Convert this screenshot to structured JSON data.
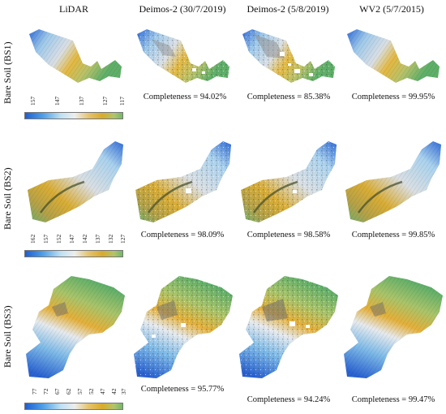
{
  "columns": [
    {
      "label": "LiDAR"
    },
    {
      "label": "Deimos-2 (30/7/2019)"
    },
    {
      "label": "Deimos-2 (5/8/2019)"
    },
    {
      "label": "WV2 (5/7/2015)"
    }
  ],
  "rows": [
    {
      "label": "Bare Soil (BS1)",
      "legend_ticks": [
        "157",
        "147",
        "137",
        "127",
        "117"
      ],
      "completeness": [
        "Completeness = 94.02%",
        "Completeness = 85.38%",
        "Completeness = 99.95%"
      ]
    },
    {
      "label": "Bare Soil (BS2)",
      "legend_ticks": [
        "162",
        "157",
        "152",
        "147",
        "142",
        "137",
        "132",
        "127"
      ],
      "completeness": [
        "Completeness = 98.09%",
        "Completeness = 98.58%",
        "Completeness = 99.85%"
      ]
    },
    {
      "label": "Bare Soil (BS3)",
      "legend_ticks": [
        "77",
        "72",
        "67",
        "62",
        "57",
        "52",
        "47",
        "42",
        "37"
      ],
      "completeness": [
        "Completeness = 95.77%",
        "Completeness = 94.24%",
        "Completeness = 99.47%"
      ]
    }
  ],
  "colors": {
    "ramp": [
      "#1f5fd0",
      "#4f9fe6",
      "#a6d4ef",
      "#e9ecef",
      "#e9c97a",
      "#dcae2c",
      "#b3c46a",
      "#6ab56d"
    ],
    "shade": "#7d7d7d",
    "gap": "#ffffff"
  }
}
